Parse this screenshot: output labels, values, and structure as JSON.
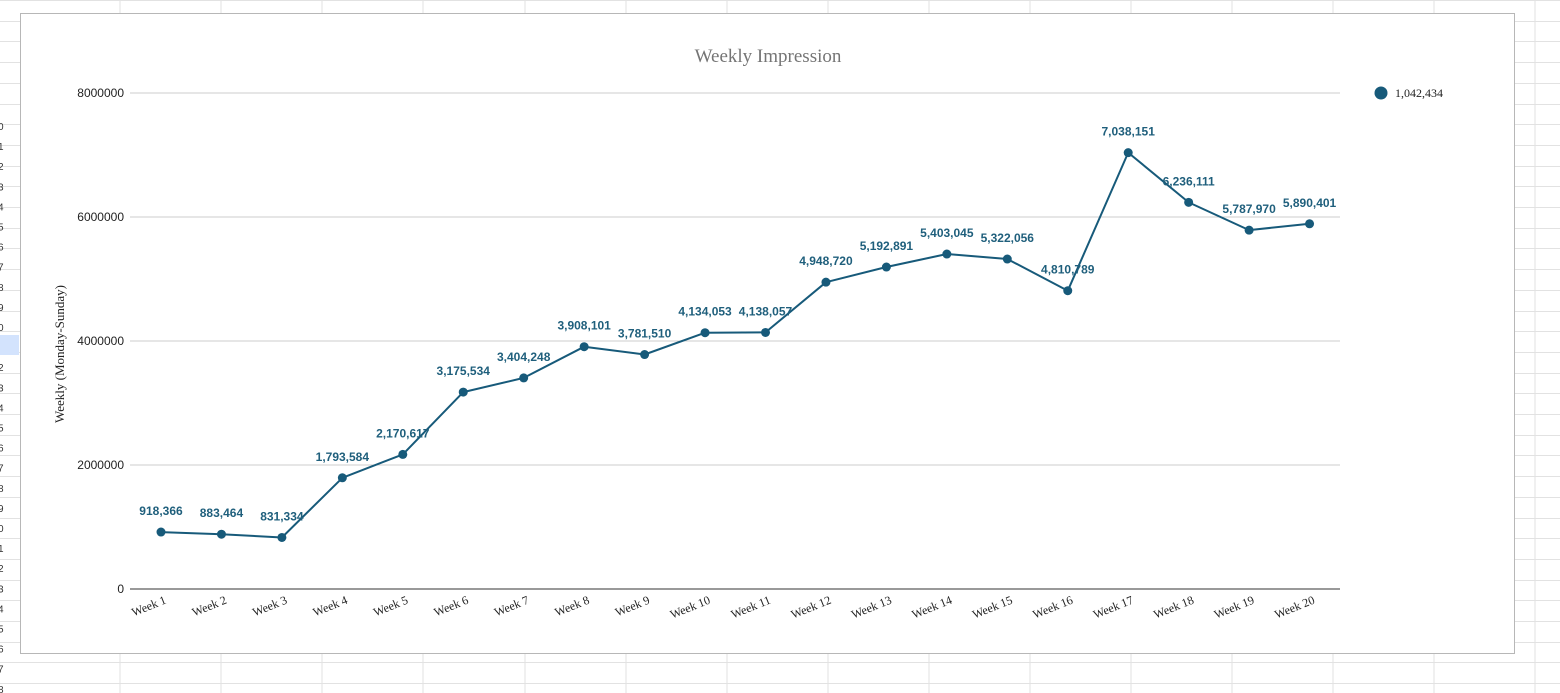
{
  "colors": {
    "series": "#175a7a",
    "label": "#1f5f7c",
    "grid": "#cccccc",
    "axis": "#333333",
    "title": "#757575",
    "sheet_grid": "#e2e2e2"
  },
  "sheet": {
    "row_numbers": [
      "0",
      "1",
      "2",
      "3",
      "4",
      "5",
      "6",
      "7",
      "8",
      "9",
      "0",
      "1",
      "2",
      "3",
      "4",
      "5",
      "6",
      "7",
      "8",
      "9",
      "0",
      "1",
      "2",
      "3",
      "4",
      "5",
      "6",
      "7",
      "8"
    ]
  },
  "chart_data": {
    "type": "line",
    "title": "Weekly Impression",
    "ylabel": "Weekly (Monday-Sunday)",
    "xlabel": "",
    "ylim": [
      0,
      8000000
    ],
    "yticks": [
      "0",
      "2000000",
      "4000000",
      "6000000",
      "8000000"
    ],
    "ytick_values": [
      0,
      2000000,
      4000000,
      6000000,
      8000000
    ],
    "grid": true,
    "legend": {
      "position": "right",
      "entries": [
        "1,042,434"
      ]
    },
    "categories": [
      "Week 1",
      "Week 2",
      "Week 3",
      "Week 4",
      "Week 5",
      "Week 6",
      "Week 7",
      "Week 8",
      "Week 9",
      "Week 10",
      "Week 11",
      "Week 12",
      "Week 13",
      "Week 14",
      "Week 15",
      "Week 16",
      "Week 17",
      "Week 18",
      "Week 19",
      "Week 20"
    ],
    "series": [
      {
        "values": [
          918366,
          883464,
          831334,
          1793584,
          2170617,
          3175534,
          3404248,
          3908101,
          3781510,
          4134053,
          4138057,
          4948720,
          5192891,
          5403045,
          5322056,
          4810789,
          7038151,
          6236111,
          5787970,
          5890401
        ],
        "labels": [
          "918,366",
          "883,464",
          "831,334",
          "1,793,584",
          "2,170,617",
          "3,175,534",
          "3,404,248",
          "3,908,101",
          "3,781,510",
          "4,134,053",
          "4,138,057",
          "4,948,720",
          "5,192,891",
          "5,403,045",
          "5,322,056",
          "4,810,789",
          "7,038,151",
          "6,236,111",
          "5,787,970",
          "5,890,401"
        ]
      }
    ]
  }
}
